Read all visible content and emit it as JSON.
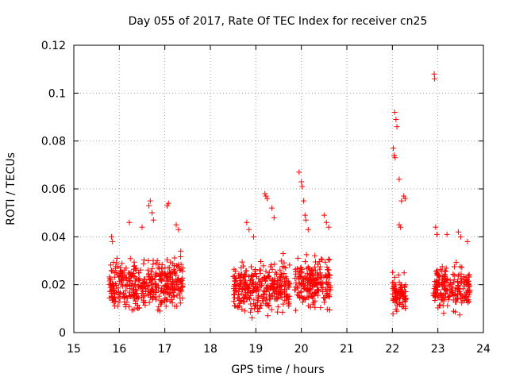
{
  "chart_data": {
    "type": "scatter",
    "title": "Day 055 of 2017, Rate Of TEC Index for receiver cn25",
    "xlabel": "GPS time / hours",
    "ylabel": "ROTI / TECUs",
    "xlim": [
      15,
      24
    ],
    "ylim": [
      0,
      0.12
    ],
    "grid": true,
    "marker": "+",
    "colors": {
      "marker": "#ff0000",
      "grid": "#a0a0a0",
      "axes": "#000000"
    },
    "x_ticks": [
      15,
      16,
      17,
      18,
      19,
      20,
      21,
      22,
      23,
      24
    ],
    "y_ticks": [
      0,
      0.02,
      0.04,
      0.06,
      0.08,
      0.1,
      0.12
    ],
    "x_tick_labels": [
      "15",
      "16",
      "17",
      "18",
      "19",
      "20",
      "21",
      "22",
      "23",
      "24"
    ],
    "y_tick_labels": [
      "0",
      "0.02",
      "0.04",
      "0.06",
      "0.08",
      "0.1",
      "0.12"
    ],
    "clusters": [
      {
        "x_start": 15.78,
        "x_end": 17.4,
        "y_min": 0.006,
        "y_max": 0.035,
        "count": 420
      },
      {
        "x_start": 18.5,
        "x_end": 19.75,
        "y_min": 0.005,
        "y_max": 0.033,
        "count": 330
      },
      {
        "x_start": 19.85,
        "x_end": 20.65,
        "y_min": 0.006,
        "y_max": 0.035,
        "count": 210
      },
      {
        "x_start": 22.0,
        "x_end": 22.3,
        "y_min": 0.006,
        "y_max": 0.026,
        "count": 90
      },
      {
        "x_start": 22.9,
        "x_end": 23.7,
        "y_min": 0.006,
        "y_max": 0.032,
        "count": 200
      }
    ],
    "notable_points": [
      [
        15.83,
        0.04
      ],
      [
        15.85,
        0.038
      ],
      [
        16.22,
        0.046
      ],
      [
        16.5,
        0.044
      ],
      [
        16.65,
        0.053
      ],
      [
        16.68,
        0.055
      ],
      [
        16.72,
        0.05
      ],
      [
        16.75,
        0.047
      ],
      [
        17.05,
        0.053
      ],
      [
        17.08,
        0.054
      ],
      [
        17.25,
        0.045
      ],
      [
        17.3,
        0.043
      ],
      [
        17.35,
        0.034
      ],
      [
        18.8,
        0.046
      ],
      [
        18.85,
        0.043
      ],
      [
        18.95,
        0.04
      ],
      [
        19.2,
        0.058
      ],
      [
        19.22,
        0.057
      ],
      [
        19.25,
        0.056
      ],
      [
        19.35,
        0.052
      ],
      [
        19.4,
        0.048
      ],
      [
        19.6,
        0.033
      ],
      [
        19.95,
        0.067
      ],
      [
        20.0,
        0.063
      ],
      [
        20.02,
        0.061
      ],
      [
        20.05,
        0.055
      ],
      [
        20.08,
        0.049
      ],
      [
        20.1,
        0.047
      ],
      [
        20.15,
        0.043
      ],
      [
        20.5,
        0.049
      ],
      [
        20.55,
        0.046
      ],
      [
        20.6,
        0.044
      ],
      [
        22.05,
        0.092
      ],
      [
        22.08,
        0.089
      ],
      [
        22.1,
        0.086
      ],
      [
        22.02,
        0.077
      ],
      [
        22.04,
        0.074
      ],
      [
        22.06,
        0.073
      ],
      [
        22.15,
        0.064
      ],
      [
        22.2,
        0.055
      ],
      [
        22.25,
        0.057
      ],
      [
        22.28,
        0.056
      ],
      [
        22.15,
        0.045
      ],
      [
        22.18,
        0.044
      ],
      [
        22.92,
        0.108
      ],
      [
        22.93,
        0.106
      ],
      [
        22.95,
        0.044
      ],
      [
        22.98,
        0.041
      ],
      [
        23.2,
        0.041
      ],
      [
        23.45,
        0.042
      ],
      [
        23.5,
        0.04
      ],
      [
        23.65,
        0.038
      ]
    ]
  }
}
